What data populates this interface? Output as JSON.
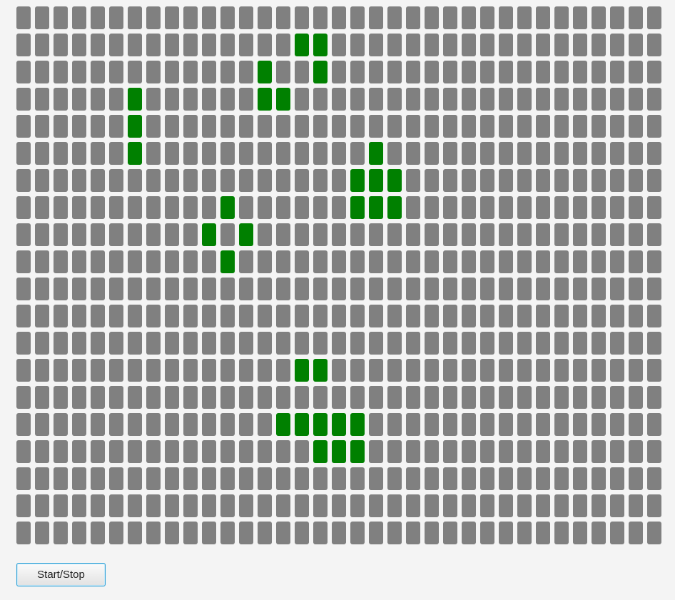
{
  "grid": {
    "columns": 35,
    "rows": 20,
    "dead_color": "#808080",
    "alive_color": "#008000",
    "alive_cells": [
      [
        1,
        15
      ],
      [
        1,
        16
      ],
      [
        2,
        13
      ],
      [
        2,
        16
      ],
      [
        3,
        6
      ],
      [
        3,
        13
      ],
      [
        3,
        14
      ],
      [
        4,
        6
      ],
      [
        5,
        6
      ],
      [
        5,
        19
      ],
      [
        6,
        18
      ],
      [
        6,
        19
      ],
      [
        6,
        20
      ],
      [
        7,
        11
      ],
      [
        7,
        18
      ],
      [
        7,
        19
      ],
      [
        7,
        20
      ],
      [
        8,
        10
      ],
      [
        8,
        12
      ],
      [
        9,
        11
      ],
      [
        13,
        15
      ],
      [
        13,
        16
      ],
      [
        15,
        14
      ],
      [
        15,
        15
      ],
      [
        15,
        16
      ],
      [
        15,
        17
      ],
      [
        15,
        18
      ],
      [
        16,
        16
      ],
      [
        16,
        17
      ],
      [
        16,
        18
      ]
    ]
  },
  "controls": {
    "start_stop_label": "Start/Stop"
  }
}
